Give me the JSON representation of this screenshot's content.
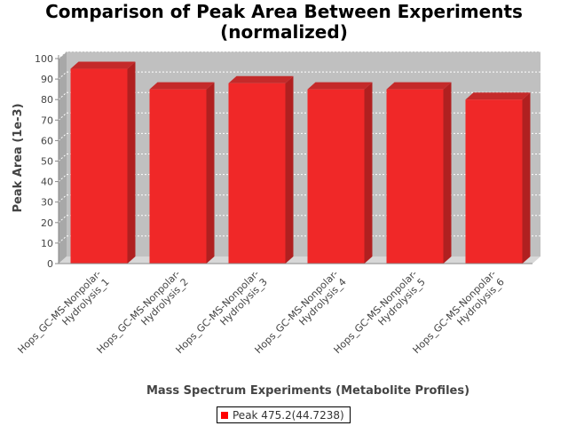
{
  "chart_data": {
    "type": "bar",
    "title_lines": [
      "Comparison of Peak Area Between Experiments",
      "(normalized)"
    ],
    "xlabel": "Mass Spectrum Experiments (Metabolite Profiles)",
    "ylabel": "Peak Area (1e-3)",
    "ylim": [
      0,
      100
    ],
    "yticks": [
      0,
      10,
      20,
      30,
      40,
      50,
      60,
      70,
      80,
      90,
      100
    ],
    "grid": true,
    "legend_position": "bottom",
    "categories": [
      "Hops_GC-MS-Nonpolar-Hydrolysis_1",
      "Hops_GC-MS-Nonpolar-Hydrolysis_2",
      "Hops_GC-MS-Nonpolar-Hydrolysis_3",
      "Hops_GC-MS-Nonpolar-Hydrolysis_4",
      "Hops_GC-MS-Nonpolar-Hydrolysis_5",
      "Hops_GC-MS-Nonpolar-Hydrolysis_6"
    ],
    "category_label_lines": [
      [
        "Hops_GC-MS-Nonpolar-",
        "Hydrolysis_1"
      ],
      [
        "Hops_GC-MS-Nonpolar-",
        "Hydrolysis_2"
      ],
      [
        "Hops_GC-MS-Nonpolar-",
        "Hydrolysis_3"
      ],
      [
        "Hops_GC-MS-Nonpolar-",
        "Hydrolysis_4"
      ],
      [
        "Hops_GC-MS-Nonpolar-",
        "Hydrolysis_5"
      ],
      [
        "Hops_GC-MS-Nonpolar-",
        "Hydrolysis_6"
      ]
    ],
    "series": [
      {
        "name": "Peak 475.2(44.7238)",
        "values": [
          95,
          85,
          88,
          85,
          85,
          80
        ]
      }
    ],
    "colors": {
      "bar_front": "#f02828",
      "bar_side": "#b02020",
      "bar_top": "#c42a2a",
      "plot_back": "#c0c0c0",
      "plot_floor": "#d8d8d8",
      "plot_wall": "#a8a8a8",
      "grid": "#ffffff",
      "legend_swatch": "#ff0000"
    }
  }
}
